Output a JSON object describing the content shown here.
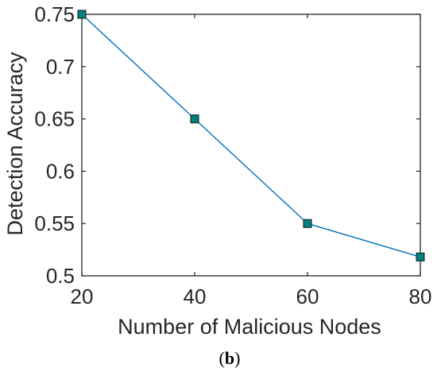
{
  "chart_data": {
    "type": "line",
    "x": [
      20,
      40,
      60,
      80
    ],
    "series": [
      {
        "values": [
          0.75,
          0.65,
          0.55,
          0.518
        ]
      }
    ],
    "xlabel": "Number of Malicious Nodes",
    "ylabel": "Detection Accuracy",
    "xlim": [
      20,
      80
    ],
    "ylim": [
      0.5,
      0.75
    ],
    "xticks": [
      20,
      40,
      60,
      80
    ],
    "xtick_labels": [
      "20",
      "40",
      "60",
      "80"
    ],
    "yticks": [
      0.5,
      0.55,
      0.6,
      0.65,
      0.7,
      0.75
    ],
    "ytick_labels": [
      "0.5",
      "0.55",
      "0.6",
      "0.65",
      "0.7",
      "0.75"
    ],
    "grid": false,
    "box": true,
    "marker": "square",
    "line_color": "#0072bd",
    "marker_fill": "#008080",
    "marker_edge": "#1a1a1a"
  },
  "caption": {
    "open": "(",
    "letter": "b",
    "close": ")"
  }
}
